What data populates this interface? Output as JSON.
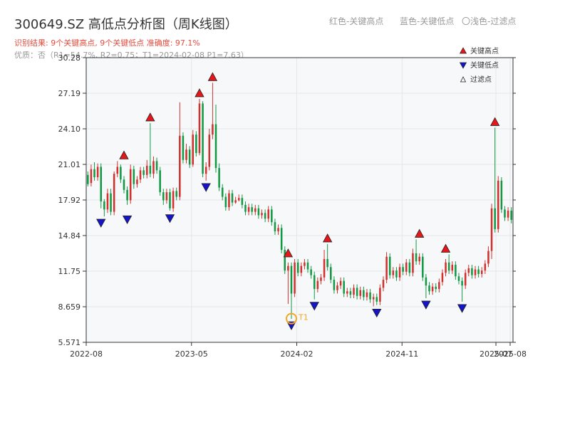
{
  "header": {
    "title": "300649.SZ 高低点分析图（周K线图）",
    "subtitle": "识别结果: 9个关键高点, 9个关键低点  准确度: 97.1%",
    "quality": "优质：否（R1=54.7%, R2=0.75；T1=2024-02-08 P1=7.63）",
    "hint_red": "红色-关键高点",
    "hint_blue": "蓝色-关键低点",
    "hint_light": "〇浅色-过滤点"
  },
  "colors": {
    "up": "#d0312d",
    "down": "#119944",
    "high_marker": "#e8161b",
    "low_marker": "#1414c8",
    "t1_marker": "#f5a623",
    "axis": "#333333",
    "grid": "#e6e6e6",
    "plot_bg": "#f7f8fa"
  },
  "chart_data": {
    "type": "candlestick",
    "title": "300649.SZ 高低点分析图（周K线图）",
    "ylim": [
      5.571,
      30.28
    ],
    "y_ticks": [
      "5.571",
      "8.659",
      "11.75",
      "14.84",
      "17.92",
      "21.01",
      "24.10",
      "27.19",
      "30.28"
    ],
    "x_ticks": [
      {
        "label": "2022-08",
        "x": 0
      },
      {
        "label": "2023-05",
        "x": 37
      },
      {
        "label": "2024-02",
        "x": 74
      },
      {
        "label": "2024-11",
        "x": 111
      },
      {
        "label": "2025-07",
        "x": 144
      },
      {
        "label": "2025-08",
        "x": 149
      }
    ],
    "candles": [
      [
        20.1,
        19.3,
        20.4,
        19.1
      ],
      [
        19.4,
        20.6,
        21.0,
        19.1
      ],
      [
        20.6,
        19.9,
        21.2,
        19.6
      ],
      [
        19.9,
        20.8,
        21.1,
        19.6
      ],
      [
        20.8,
        17.8,
        21.1,
        17.2
      ],
      [
        17.8,
        17.1,
        18.0,
        16.5
      ],
      [
        17.1,
        18.5,
        18.9,
        16.8
      ],
      [
        18.5,
        16.9,
        18.9,
        16.6
      ],
      [
        16.9,
        20.2,
        20.4,
        16.6
      ],
      [
        20.2,
        20.8,
        21.3,
        19.9
      ],
      [
        20.8,
        19.7,
        21.0,
        19.4
      ],
      [
        19.7,
        18.8,
        20.0,
        18.5
      ],
      [
        18.8,
        17.9,
        19.1,
        17.5
      ],
      [
        17.9,
        20.6,
        21.0,
        17.6
      ],
      [
        20.6,
        19.3,
        20.9,
        18.9
      ],
      [
        19.3,
        19.7,
        20.0,
        19.0
      ],
      [
        19.7,
        20.5,
        20.8,
        19.4
      ],
      [
        20.5,
        20.1,
        20.8,
        19.8
      ],
      [
        20.1,
        20.9,
        21.4,
        19.8
      ],
      [
        20.9,
        20.2,
        24.6,
        19.9
      ],
      [
        20.2,
        21.3,
        21.7,
        19.8
      ],
      [
        21.3,
        20.5,
        21.6,
        20.2
      ],
      [
        20.5,
        18.6,
        20.8,
        18.3
      ],
      [
        18.6,
        17.9,
        18.9,
        17.5
      ],
      [
        17.9,
        18.6,
        18.9,
        17.6
      ],
      [
        18.6,
        17.2,
        18.9,
        17.0
      ],
      [
        17.2,
        18.7,
        19.0,
        16.9
      ],
      [
        18.7,
        18.2,
        19.0,
        17.9
      ],
      [
        18.2,
        23.5,
        26.4,
        17.9
      ],
      [
        23.5,
        21.4,
        23.8,
        21.1
      ],
      [
        21.4,
        22.3,
        22.8,
        21.1
      ],
      [
        22.3,
        21.0,
        22.6,
        20.7
      ],
      [
        21.0,
        23.6,
        24.0,
        20.8
      ],
      [
        23.6,
        22.0,
        23.9,
        21.7
      ],
      [
        22.0,
        26.3,
        26.7,
        21.8
      ],
      [
        26.3,
        20.2,
        26.5,
        19.9
      ],
      [
        20.2,
        20.8,
        21.2,
        19.6
      ],
      [
        20.8,
        23.6,
        24.1,
        20.5
      ],
      [
        23.6,
        24.5,
        28.1,
        23.2
      ],
      [
        24.5,
        20.7,
        26.2,
        20.3
      ],
      [
        20.7,
        19.0,
        21.1,
        18.7
      ],
      [
        19.0,
        18.2,
        19.3,
        17.9
      ],
      [
        18.2,
        17.3,
        18.5,
        17.0
      ],
      [
        17.3,
        18.5,
        18.8,
        17.0
      ],
      [
        18.5,
        17.7,
        18.8,
        17.4
      ],
      [
        17.7,
        17.9,
        18.2,
        17.6
      ],
      [
        17.9,
        18.1,
        18.4,
        17.8
      ],
      [
        18.1,
        17.5,
        18.4,
        17.2
      ],
      [
        17.5,
        16.9,
        17.8,
        16.6
      ],
      [
        16.9,
        17.3,
        17.6,
        16.6
      ],
      [
        17.3,
        16.9,
        17.6,
        16.6
      ],
      [
        16.9,
        17.2,
        17.5,
        16.6
      ],
      [
        17.2,
        16.6,
        17.5,
        16.3
      ],
      [
        16.6,
        16.8,
        17.1,
        16.3
      ],
      [
        16.8,
        16.3,
        17.1,
        16.0
      ],
      [
        16.3,
        17.1,
        17.4,
        16.0
      ],
      [
        17.1,
        16.0,
        17.4,
        15.7
      ],
      [
        16.0,
        15.2,
        16.3,
        14.9
      ],
      [
        15.2,
        15.5,
        15.8,
        14.9
      ],
      [
        15.5,
        13.6,
        15.8,
        13.3
      ],
      [
        13.6,
        11.8,
        13.9,
        11.5
      ],
      [
        11.8,
        12.2,
        12.5,
        8.9
      ],
      [
        12.2,
        9.8,
        12.5,
        7.6
      ],
      [
        9.8,
        12.5,
        12.8,
        9.5
      ],
      [
        12.5,
        11.6,
        12.8,
        11.3
      ],
      [
        11.6,
        12.2,
        12.5,
        11.3
      ],
      [
        12.2,
        12.5,
        12.8,
        11.9
      ],
      [
        12.5,
        11.9,
        12.8,
        11.6
      ],
      [
        11.9,
        11.4,
        12.2,
        11.1
      ],
      [
        11.4,
        10.2,
        11.7,
        9.3
      ],
      [
        10.2,
        10.9,
        11.2,
        9.9
      ],
      [
        10.9,
        11.2,
        11.5,
        10.6
      ],
      [
        11.2,
        12.8,
        13.6,
        10.9
      ],
      [
        12.8,
        12.1,
        14.1,
        11.8
      ],
      [
        12.1,
        11.0,
        12.4,
        10.7
      ],
      [
        11.0,
        10.1,
        11.3,
        9.8
      ],
      [
        10.1,
        10.5,
        10.8,
        9.8
      ],
      [
        10.5,
        10.9,
        11.2,
        10.2
      ],
      [
        10.9,
        9.8,
        11.2,
        9.5
      ],
      [
        9.8,
        10.0,
        10.3,
        9.5
      ],
      [
        10.0,
        9.7,
        10.3,
        9.4
      ],
      [
        9.7,
        10.3,
        10.6,
        9.4
      ],
      [
        10.3,
        9.6,
        10.6,
        9.3
      ],
      [
        9.6,
        10.1,
        10.4,
        9.3
      ],
      [
        10.1,
        9.5,
        10.4,
        9.2
      ],
      [
        9.5,
        9.9,
        10.2,
        9.2
      ],
      [
        9.9,
        9.3,
        10.2,
        9.0
      ],
      [
        9.3,
        9.5,
        9.8,
        8.7
      ],
      [
        9.5,
        9.1,
        9.8,
        8.8
      ],
      [
        9.1,
        10.3,
        10.6,
        8.8
      ],
      [
        10.3,
        11.0,
        11.3,
        10.0
      ],
      [
        11.0,
        13.0,
        13.4,
        10.7
      ],
      [
        13.0,
        11.4,
        13.3,
        11.1
      ],
      [
        11.4,
        11.8,
        12.1,
        11.1
      ],
      [
        11.8,
        11.2,
        12.1,
        10.9
      ],
      [
        11.2,
        12.1,
        12.4,
        10.9
      ],
      [
        12.1,
        11.7,
        12.4,
        11.4
      ],
      [
        11.7,
        12.5,
        12.8,
        11.4
      ],
      [
        12.5,
        11.6,
        12.8,
        11.3
      ],
      [
        11.6,
        13.3,
        13.7,
        11.3
      ],
      [
        13.3,
        12.6,
        14.5,
        12.3
      ],
      [
        12.6,
        13.0,
        13.3,
        12.3
      ],
      [
        13.0,
        11.2,
        13.3,
        10.9
      ],
      [
        11.2,
        10.5,
        11.5,
        9.4
      ],
      [
        10.5,
        10.0,
        10.8,
        9.7
      ],
      [
        10.0,
        10.4,
        10.7,
        9.7
      ],
      [
        10.4,
        10.2,
        10.7,
        9.9
      ],
      [
        10.2,
        10.8,
        11.1,
        9.9
      ],
      [
        10.8,
        11.6,
        11.9,
        10.5
      ],
      [
        11.6,
        12.5,
        12.8,
        11.3
      ],
      [
        12.5,
        11.8,
        13.2,
        11.5
      ],
      [
        11.8,
        12.3,
        12.6,
        11.5
      ],
      [
        12.3,
        11.3,
        12.6,
        11.0
      ],
      [
        11.3,
        10.9,
        11.6,
        10.6
      ],
      [
        10.9,
        10.5,
        11.2,
        9.1
      ],
      [
        10.5,
        11.6,
        11.9,
        10.2
      ],
      [
        11.6,
        12.0,
        12.3,
        11.3
      ],
      [
        12.0,
        11.4,
        12.3,
        11.1
      ],
      [
        11.4,
        11.9,
        12.2,
        11.1
      ],
      [
        11.9,
        11.5,
        12.2,
        11.2
      ],
      [
        11.5,
        11.8,
        12.1,
        11.2
      ],
      [
        11.8,
        12.4,
        12.7,
        11.5
      ],
      [
        12.4,
        13.5,
        13.9,
        12.1
      ],
      [
        13.5,
        17.2,
        17.6,
        12.8
      ],
      [
        17.2,
        15.4,
        24.2,
        15.1
      ],
      [
        15.4,
        19.6,
        20.0,
        15.1
      ],
      [
        19.6,
        17.1,
        19.9,
        16.8
      ],
      [
        17.1,
        16.4,
        17.4,
        16.1
      ],
      [
        16.4,
        17.0,
        17.3,
        16.1
      ],
      [
        17.0,
        16.2,
        17.3,
        15.9
      ]
    ],
    "key_highs": [
      [
        11,
        21.3
      ],
      [
        19,
        24.6
      ],
      [
        34,
        26.7
      ],
      [
        38,
        28.1
      ],
      [
        61,
        12.8
      ],
      [
        73,
        14.1
      ],
      [
        101,
        14.5
      ],
      [
        109,
        13.2
      ],
      [
        124,
        24.2
      ]
    ],
    "key_lows": [
      [
        4,
        16.5
      ],
      [
        12,
        16.8
      ],
      [
        25,
        16.9
      ],
      [
        36,
        19.6
      ],
      [
        62,
        7.6
      ],
      [
        69,
        9.3
      ],
      [
        88,
        8.7
      ],
      [
        103,
        9.4
      ],
      [
        114,
        9.1
      ]
    ],
    "t1": {
      "index": 62,
      "price": 7.63,
      "label": "T1"
    },
    "legend": [
      {
        "label": "关键高点",
        "marker": "triangle-up"
      },
      {
        "label": "关键低点",
        "marker": "triangle-down"
      },
      {
        "label": "过滤点",
        "marker": "triangle-up-outline"
      }
    ]
  }
}
